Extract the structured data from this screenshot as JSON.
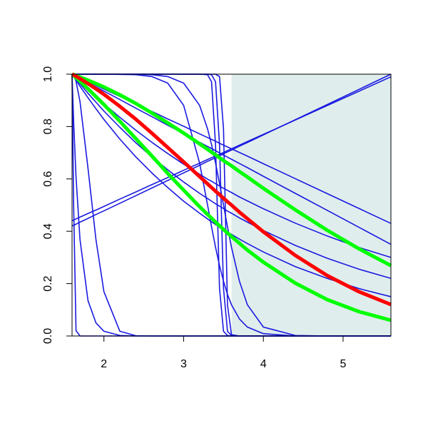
{
  "chart_data": {
    "type": "line",
    "x": [
      1.6,
      1.62,
      1.65,
      1.7,
      1.8,
      1.9,
      2.0,
      2.2,
      2.4,
      2.6,
      2.8,
      3.0,
      3.2,
      3.3,
      3.35,
      3.4,
      3.45,
      3.5,
      3.55,
      3.6,
      3.7,
      3.8,
      4.0,
      4.4,
      4.8,
      5.2,
      5.6
    ],
    "xlim": [
      1.6,
      5.6
    ],
    "ylim": [
      0,
      1
    ],
    "xticks": [
      2,
      3,
      4,
      5
    ],
    "yticks": [
      {
        "value": 0,
        "label": "0.0"
      },
      0.2,
      0.4,
      0.6,
      0.8,
      {
        "value": 1,
        "label": "1.0"
      }
    ],
    "highlight": {
      "xlim": [
        3.6,
        5.6
      ],
      "color": "#e0eded"
    },
    "series": [
      {
        "color": "#1a1ae0",
        "line_width": 1.6,
        "values": [
          1,
          0.997,
          0.993,
          0.986,
          0.972,
          0.957,
          0.943,
          0.915,
          0.886,
          0.858,
          0.829,
          0.801,
          0.772,
          0.758,
          0.751,
          0.744,
          0.736,
          0.729,
          0.722,
          0.715,
          0.701,
          0.687,
          0.658,
          0.601,
          0.544,
          0.487,
          0.43
        ]
      },
      {
        "color": "#1a1ae0",
        "line_width": 1.6,
        "values": [
          1,
          0.997,
          0.992,
          0.984,
          0.968,
          0.951,
          0.935,
          0.903,
          0.87,
          0.838,
          0.805,
          0.773,
          0.74,
          0.724,
          0.716,
          0.708,
          0.699,
          0.691,
          0.683,
          0.675,
          0.659,
          0.643,
          0.61,
          0.545,
          0.48,
          0.415,
          0.35
        ]
      },
      {
        "color": "#1a1ae0",
        "line_width": 1.6,
        "values": [
          1,
          0.994,
          0.985,
          0.97,
          0.942,
          0.914,
          0.887,
          0.835,
          0.786,
          0.74,
          0.697,
          0.656,
          0.618,
          0.599,
          0.591,
          0.582,
          0.573,
          0.564,
          0.556,
          0.548,
          0.531,
          0.516,
          0.486,
          0.431,
          0.382,
          0.338,
          0.3
        ]
      },
      {
        "color": "#1a1ae0",
        "line_width": 1.6,
        "values": [
          1,
          0.992,
          0.981,
          0.963,
          0.927,
          0.893,
          0.859,
          0.797,
          0.738,
          0.685,
          0.635,
          0.588,
          0.545,
          0.525,
          0.515,
          0.505,
          0.496,
          0.487,
          0.477,
          0.469,
          0.451,
          0.435,
          0.403,
          0.346,
          0.297,
          0.255,
          0.22
        ]
      },
      {
        "color": "#1a1ae0",
        "line_width": 1.6,
        "values": [
          1,
          0.991,
          0.977,
          0.954,
          0.91,
          0.868,
          0.827,
          0.752,
          0.684,
          0.623,
          0.567,
          0.515,
          0.469,
          0.447,
          0.436,
          0.426,
          0.416,
          0.406,
          0.397,
          0.388,
          0.37,
          0.353,
          0.321,
          0.265,
          0.22,
          0.181,
          0.15
        ]
      },
      {
        "color": "#1a1ae0",
        "line_width": 1.6,
        "values": [
          0.42,
          0.423,
          0.427,
          0.435,
          0.449,
          0.464,
          0.478,
          0.507,
          0.536,
          0.565,
          0.594,
          0.623,
          0.652,
          0.667,
          0.674,
          0.681,
          0.688,
          0.696,
          0.703,
          0.71,
          0.725,
          0.739,
          0.768,
          0.826,
          0.884,
          0.942,
          1
        ]
      },
      {
        "color": "#1a1ae0",
        "line_width": 1.6,
        "values": [
          0.44,
          0.443,
          0.447,
          0.454,
          0.468,
          0.481,
          0.495,
          0.523,
          0.55,
          0.578,
          0.605,
          0.633,
          0.66,
          0.674,
          0.681,
          0.688,
          0.694,
          0.701,
          0.708,
          0.715,
          0.729,
          0.743,
          0.77,
          0.825,
          0.88,
          0.935,
          0.99
        ]
      },
      {
        "color": "#1a1ae0",
        "line_width": 1.6,
        "values": [
          1,
          0.5,
          0.02,
          0,
          0,
          0,
          0,
          0,
          0,
          0,
          0,
          0,
          0,
          0,
          0,
          0,
          0,
          0,
          0,
          0,
          0,
          0,
          0,
          0,
          0,
          0,
          0
        ]
      },
      {
        "color": "#1a1ae0",
        "line_width": 1.6,
        "values": [
          1,
          0.819,
          0.607,
          0.368,
          0.135,
          0.05,
          0.018,
          0.002,
          0,
          0,
          0,
          0,
          0,
          0,
          0,
          0,
          0,
          0,
          0,
          0,
          0,
          0,
          0,
          0,
          0,
          0,
          0
        ]
      },
      {
        "color": "#1a1ae0",
        "line_width": 1.6,
        "values": [
          1,
          0.996,
          0.973,
          0.895,
          0.641,
          0.368,
          0.169,
          0.018,
          0.001,
          0,
          0,
          0,
          0,
          0,
          0,
          0,
          0,
          0,
          0,
          0,
          0,
          0,
          0,
          0,
          0,
          0,
          0
        ]
      },
      {
        "color": "#1a1ae0",
        "line_width": 1.6,
        "values": [
          1,
          1,
          1,
          1,
          1,
          1,
          1,
          1,
          1,
          1,
          1,
          1,
          1,
          0.998,
          0.971,
          0.731,
          0.182,
          0.018,
          0.002,
          0,
          0,
          0,
          0,
          0,
          0,
          0,
          0
        ]
      },
      {
        "color": "#1a1ae0",
        "line_width": 1.6,
        "values": [
          1,
          1,
          1,
          1,
          1,
          1,
          1,
          1,
          1,
          1,
          1,
          1,
          1,
          1,
          0.998,
          0.971,
          0.731,
          0.182,
          0.018,
          0.002,
          0,
          0,
          0,
          0,
          0,
          0,
          0
        ]
      },
      {
        "color": "#1a1ae0",
        "line_width": 1.6,
        "values": [
          1,
          1,
          1,
          1,
          1,
          1,
          1,
          1,
          1,
          1,
          1,
          1,
          1,
          1,
          1,
          1,
          0.991,
          0.791,
          0.119,
          0.005,
          0,
          0,
          0,
          0,
          0,
          0,
          0
        ]
      },
      {
        "color": "#1a1ae0",
        "line_width": 1.6,
        "values": [
          1,
          1,
          1,
          1,
          1,
          1,
          1,
          0.999,
          0.998,
          0.991,
          0.966,
          0.881,
          0.661,
          0.5,
          0.417,
          0.339,
          0.269,
          0.209,
          0.159,
          0.119,
          0.065,
          0.034,
          0.009,
          0,
          0,
          0,
          0
        ]
      },
      {
        "color": "#1a1ae0",
        "line_width": 1.6,
        "values": [
          1,
          1,
          1,
          1,
          1,
          1,
          1,
          1,
          1,
          0.998,
          0.991,
          0.966,
          0.881,
          0.791,
          0.731,
          0.661,
          0.583,
          0.5,
          0.417,
          0.339,
          0.209,
          0.119,
          0.034,
          0.002,
          0,
          0,
          0
        ]
      },
      {
        "color": "#00ff00",
        "line_width": 5,
        "values": [
          1,
          0.998,
          0.995,
          0.989,
          0.977,
          0.964,
          0.951,
          0.921,
          0.888,
          0.852,
          0.814,
          0.775,
          0.734,
          0.713,
          0.702,
          0.692,
          0.681,
          0.67,
          0.66,
          0.65,
          0.628,
          0.607,
          0.564,
          0.482,
          0.404,
          0.333,
          0.269
        ]
      },
      {
        "color": "#00ff00",
        "line_width": 5,
        "values": [
          1,
          0.995,
          0.986,
          0.973,
          0.944,
          0.914,
          0.884,
          0.82,
          0.754,
          0.688,
          0.621,
          0.557,
          0.494,
          0.464,
          0.45,
          0.435,
          0.421,
          0.407,
          0.393,
          0.38,
          0.354,
          0.328,
          0.282,
          0.202,
          0.139,
          0.093,
          0.06
        ]
      },
      {
        "color": "#ff0000",
        "line_width": 5,
        "values": [
          1,
          0.997,
          0.992,
          0.983,
          0.964,
          0.944,
          0.923,
          0.877,
          0.828,
          0.775,
          0.72,
          0.665,
          0.609,
          0.581,
          0.567,
          0.553,
          0.54,
          0.526,
          0.513,
          0.5,
          0.473,
          0.448,
          0.398,
          0.308,
          0.231,
          0.169,
          0.12
        ]
      }
    ]
  }
}
